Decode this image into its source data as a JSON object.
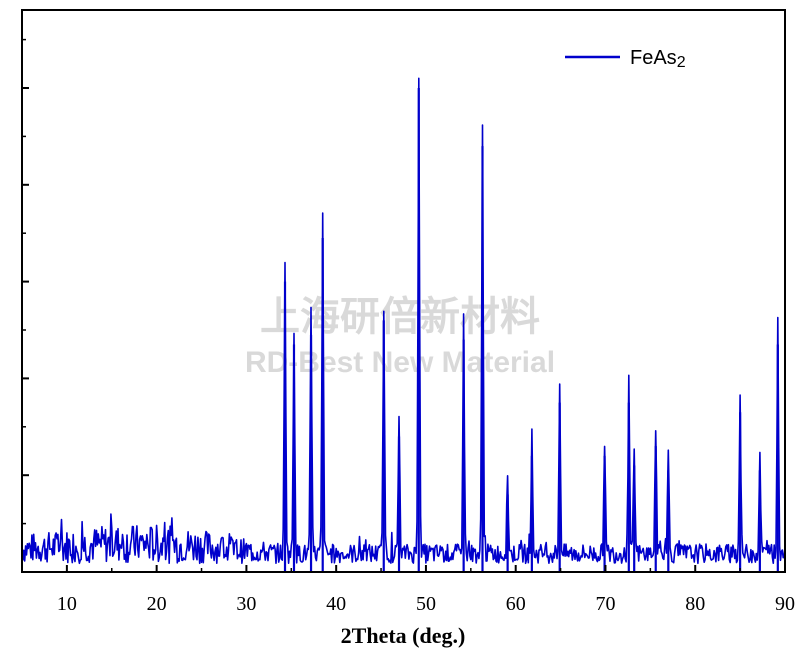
{
  "chart_data": {
    "type": "line",
    "xlabel": "2Theta (deg.)",
    "ylabel": "",
    "xlim": [
      5,
      90
    ],
    "ylim": [
      0,
      100
    ],
    "x_ticks": [
      10,
      20,
      30,
      40,
      50,
      60,
      70,
      80,
      90
    ],
    "y_tick_labels_shown": false,
    "grid": false,
    "legend_position": "top-right",
    "series_color": "#0000CC",
    "series": [
      {
        "name": "FeAs2",
        "background_level": 6,
        "noise_profile": [
          {
            "x": 5,
            "y": 6
          },
          {
            "x": 10,
            "y": 7
          },
          {
            "x": 15,
            "y": 8
          },
          {
            "x": 20,
            "y": 8
          },
          {
            "x": 25,
            "y": 7
          },
          {
            "x": 30,
            "y": 5
          },
          {
            "x": 34,
            "y": 4
          },
          {
            "x": 40,
            "y": 4
          },
          {
            "x": 50,
            "y": 4
          },
          {
            "x": 60,
            "y": 4
          },
          {
            "x": 70,
            "y": 4
          },
          {
            "x": 80,
            "y": 4
          },
          {
            "x": 90,
            "y": 4
          }
        ],
        "peaks": [
          {
            "x": 34.3,
            "y": 60
          },
          {
            "x": 35.3,
            "y": 47
          },
          {
            "x": 37.2,
            "y": 49
          },
          {
            "x": 38.5,
            "y": 69
          },
          {
            "x": 45.3,
            "y": 52
          },
          {
            "x": 47.0,
            "y": 28
          },
          {
            "x": 49.2,
            "y": 100
          },
          {
            "x": 54.2,
            "y": 48
          },
          {
            "x": 56.3,
            "y": 88
          },
          {
            "x": 59.1,
            "y": 16
          },
          {
            "x": 61.8,
            "y": 24
          },
          {
            "x": 64.9,
            "y": 35
          },
          {
            "x": 69.9,
            "y": 24
          },
          {
            "x": 72.6,
            "y": 35
          },
          {
            "x": 73.2,
            "y": 22
          },
          {
            "x": 75.6,
            "y": 26
          },
          {
            "x": 77.0,
            "y": 21
          },
          {
            "x": 85.0,
            "y": 33
          },
          {
            "x": 87.2,
            "y": 21
          },
          {
            "x": 89.2,
            "y": 47
          }
        ]
      }
    ]
  },
  "legend": {
    "entry_label": "FeAs",
    "entry_subscript": "2"
  },
  "watermark": {
    "line1": "上海研倍新材料",
    "line2": "RD-Best New Material"
  }
}
